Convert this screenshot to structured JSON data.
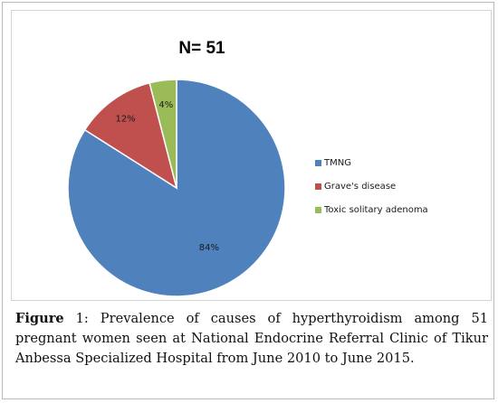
{
  "chart_data": {
    "type": "pie",
    "title": "N= 51",
    "legend_position": "right",
    "slices": [
      {
        "label": "TMNG",
        "value": 84,
        "value_label": "84%",
        "color": "#4f81bd"
      },
      {
        "label": "Grave's disease",
        "value": 12,
        "value_label": "12%",
        "color": "#c0504d"
      },
      {
        "label": "Toxic solitary adenoma",
        "value": 4,
        "value_label": "4%",
        "color": "#9bbb59"
      }
    ]
  },
  "legend": {
    "items": [
      {
        "label": "TMNG",
        "color": "#4f81bd"
      },
      {
        "label": "Grave's disease",
        "color": "#c0504d"
      },
      {
        "label": "Toxic solitary adenoma",
        "color": "#9bbb59"
      }
    ]
  },
  "caption": {
    "lead": "Figure",
    "number": "1:",
    "text": "Prevalence of causes of hyperthyroidism among 51 pregnant women seen at National Endocrine Referral Clinic of Tikur Anbessa Specialized Hospital from June 2010 to June 2015."
  }
}
